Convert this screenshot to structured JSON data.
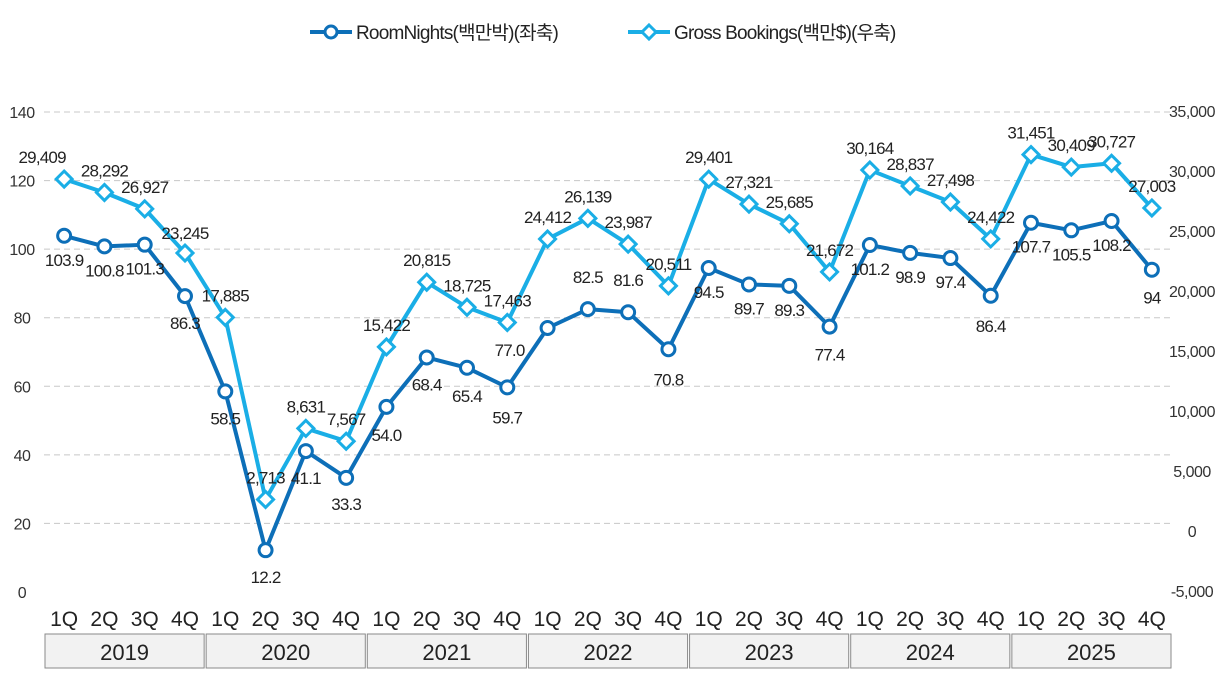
{
  "chart_data": {
    "type": "line",
    "categories": [
      "1Q",
      "2Q",
      "3Q",
      "4Q",
      "1Q",
      "2Q",
      "3Q",
      "4Q",
      "1Q",
      "2Q",
      "3Q",
      "4Q",
      "1Q",
      "2Q",
      "3Q",
      "4Q",
      "1Q",
      "2Q",
      "3Q",
      "4Q",
      "1Q",
      "2Q",
      "3Q",
      "4Q",
      "1Q",
      "2Q",
      "3Q",
      "4Q"
    ],
    "year_groups": [
      {
        "label": "2019",
        "span": 4
      },
      {
        "label": "2020",
        "span": 4
      },
      {
        "label": "2021",
        "span": 4
      },
      {
        "label": "2022",
        "span": 4
      },
      {
        "label": "2023",
        "span": 4
      },
      {
        "label": "2024",
        "span": 4
      },
      {
        "label": "2025",
        "span": 4
      }
    ],
    "series": [
      {
        "name": "RoomNights(백만박)(좌축)",
        "axis": "left",
        "color": "#0d6fb8",
        "marker": "circle",
        "values": [
          103.9,
          100.8,
          101.3,
          86.3,
          58.5,
          12.2,
          41.1,
          33.3,
          54.0,
          68.4,
          65.4,
          59.7,
          77.0,
          82.5,
          81.6,
          70.8,
          94.5,
          89.7,
          89.3,
          77.4,
          101.2,
          98.9,
          97.4,
          86.4,
          107.7,
          105.5,
          108.2,
          94
        ],
        "labels": [
          "103.9",
          "100.8",
          "101.3",
          "86.3",
          "58.5",
          "12.2",
          "41.1",
          "33.3",
          "54.0",
          "68.4",
          "65.4",
          "59.7",
          "77.0",
          "82.5",
          "81.6",
          "70.8",
          "94.5",
          "89.7",
          "89.3",
          "77.4",
          "101.2",
          "98.9",
          "97.4",
          "86.4",
          "107.7",
          "105.5",
          "108.2",
          "94"
        ]
      },
      {
        "name": "Gross Bookings(백만$)(우축)",
        "axis": "right",
        "color": "#1aaee6",
        "marker": "diamond",
        "values": [
          29409,
          28292,
          26927,
          23245,
          17885,
          2713,
          8631,
          7567,
          15422,
          20815,
          18725,
          17463,
          24412,
          26139,
          23987,
          20511,
          29401,
          27321,
          25685,
          21672,
          30164,
          28837,
          27498,
          24422,
          31451,
          30409,
          30727,
          27003
        ],
        "labels": [
          "29,409",
          "28,292",
          "26,927",
          "23,245",
          "17,885",
          "2,713",
          "8,631",
          "7,567",
          "15,422",
          "20,815",
          "18,725",
          "17,463",
          "24,412",
          "26,139",
          "23,987",
          "20,511",
          "29,401",
          "27,321",
          "25,685",
          "21,672",
          "30,164",
          "28,837",
          "27,498",
          "24,422",
          "31,451",
          "30,409",
          "30,727",
          "27,003"
        ]
      }
    ],
    "left_axis": {
      "ylim": [
        0,
        140
      ],
      "ticks": [
        "0",
        "20",
        "40",
        "60",
        "80",
        "100",
        "120",
        "140"
      ]
    },
    "right_axis": {
      "ylim": [
        -5000,
        35000
      ],
      "ticks": [
        "-5,000",
        "0",
        "5,000",
        "10,000",
        "15,000",
        "20,000",
        "25,000",
        "30,000",
        "35,000"
      ]
    },
    "grid": true,
    "legend_position": "top-center"
  }
}
